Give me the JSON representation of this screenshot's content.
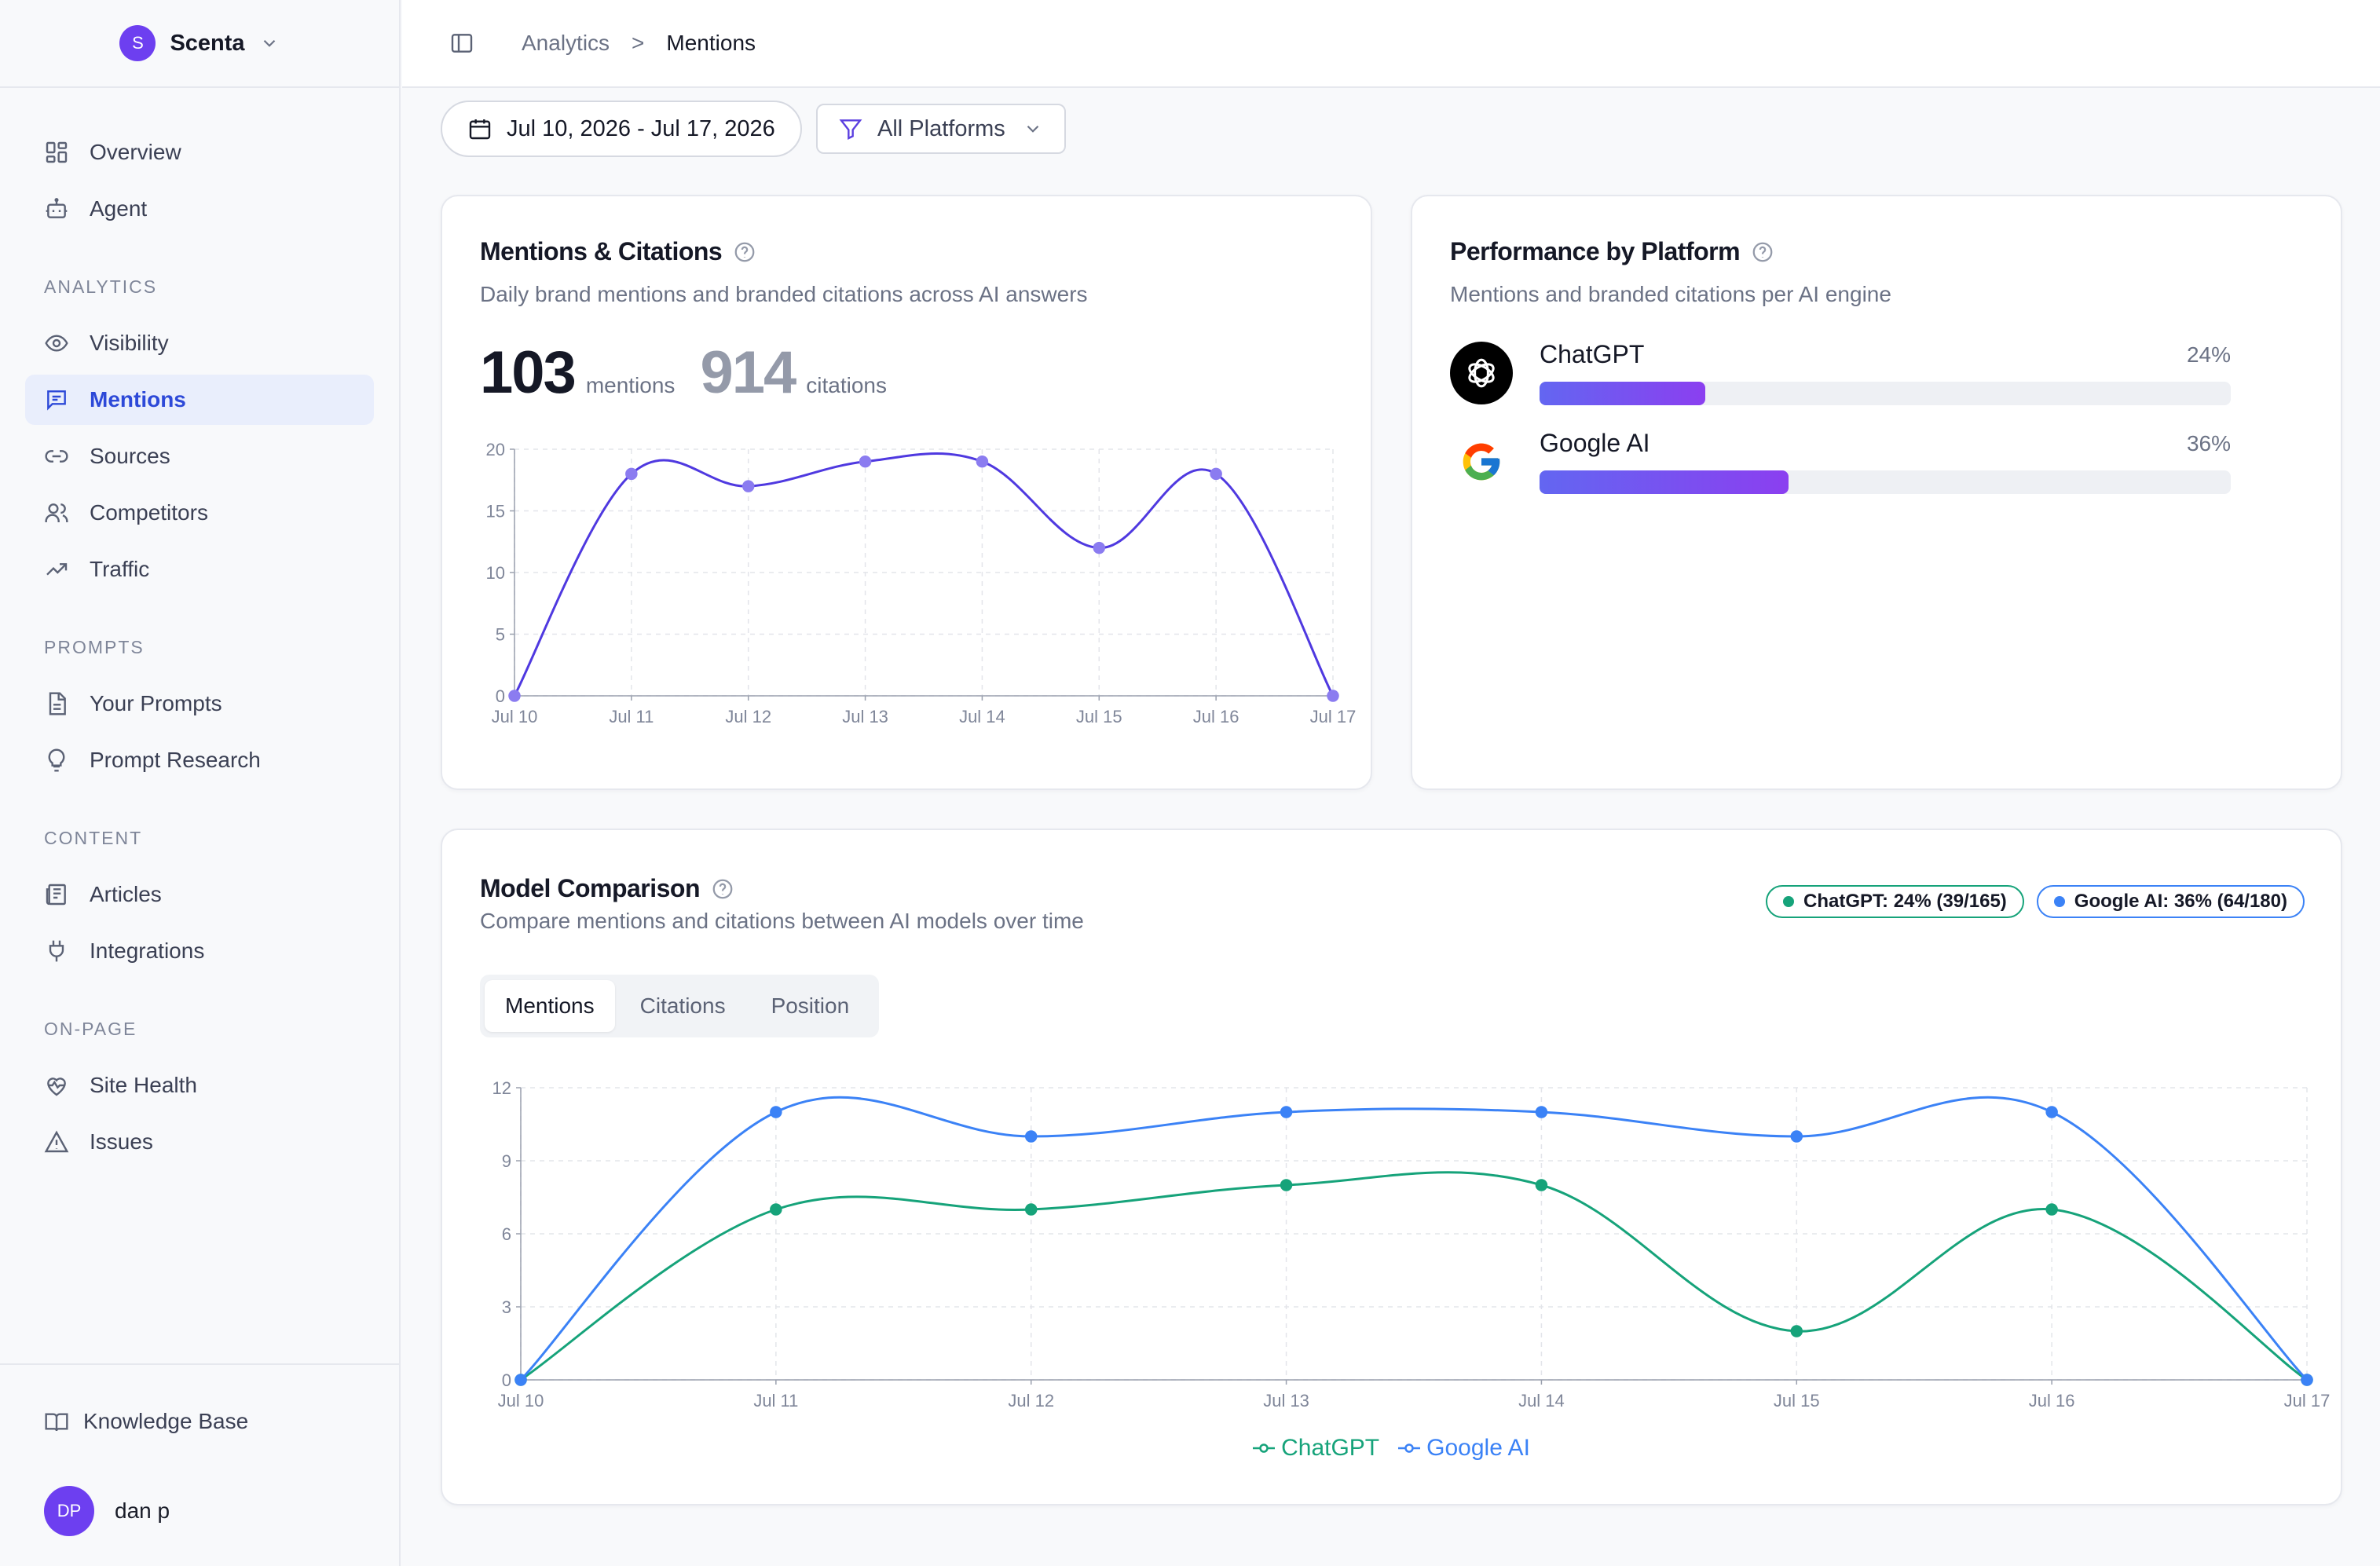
{
  "workspace": {
    "initial": "S",
    "name": "Scenta"
  },
  "nav": {
    "top": [
      {
        "label": "Overview",
        "icon": "dashboard-icon"
      },
      {
        "label": "Agent",
        "icon": "robot-icon"
      }
    ],
    "sections": [
      {
        "title": "ANALYTICS",
        "items": [
          {
            "label": "Visibility",
            "icon": "eye-icon"
          },
          {
            "label": "Mentions",
            "icon": "message-icon",
            "active": true
          },
          {
            "label": "Sources",
            "icon": "link-icon"
          },
          {
            "label": "Competitors",
            "icon": "users-icon"
          },
          {
            "label": "Traffic",
            "icon": "trending-up-icon"
          }
        ]
      },
      {
        "title": "PROMPTS",
        "items": [
          {
            "label": "Your Prompts",
            "icon": "document-icon"
          },
          {
            "label": "Prompt Research",
            "icon": "lightbulb-icon"
          }
        ]
      },
      {
        "title": "CONTENT",
        "items": [
          {
            "label": "Articles",
            "icon": "newspaper-icon"
          },
          {
            "label": "Integrations",
            "icon": "plug-icon"
          }
        ]
      },
      {
        "title": "ON-PAGE",
        "items": [
          {
            "label": "Site Health",
            "icon": "heart-pulse-icon"
          },
          {
            "label": "Issues",
            "icon": "warning-icon"
          }
        ]
      }
    ],
    "bottom": {
      "knowledge_base": "Knowledge Base",
      "user_initials": "DP",
      "user_name": "dan p"
    }
  },
  "breadcrumb": {
    "parent": "Analytics",
    "separator": ">",
    "current": "Mentions"
  },
  "filters": {
    "date_range": "Jul 10, 2026 - Jul 17, 2026",
    "platform": "All Platforms"
  },
  "mentions_card": {
    "title": "Mentions & Citations",
    "subtitle": "Daily brand mentions and branded citations across AI answers",
    "mentions_value": "103",
    "mentions_label": "mentions",
    "citations_value": "914",
    "citations_label": "citations"
  },
  "performance_card": {
    "title": "Performance by Platform",
    "subtitle": "Mentions and branded citations per AI engine",
    "platforms": [
      {
        "name": "ChatGPT",
        "pct_label": "24%",
        "share": 0.24
      },
      {
        "name": "Google AI",
        "pct_label": "36%",
        "share": 0.36
      }
    ]
  },
  "model_card": {
    "title": "Model Comparison",
    "subtitle": "Compare mentions and citations between AI models over time",
    "badges": [
      {
        "label": "ChatGPT: 24% (39/165)",
        "color": "#16a37a"
      },
      {
        "label": "Google AI: 36% (64/180)",
        "color": "#3b82f6"
      }
    ],
    "tabs": [
      "Mentions",
      "Citations",
      "Position"
    ],
    "active_tab": "Mentions"
  },
  "colors": {
    "accent": "#2d49d8",
    "purple": "#5b3fe0",
    "chatgpt": "#16a37a",
    "google": "#3b82f6"
  },
  "chart_data": [
    {
      "type": "line",
      "x": [
        "Jul 10",
        "Jul 11",
        "Jul 12",
        "Jul 13",
        "Jul 14",
        "Jul 15",
        "Jul 16",
        "Jul 17"
      ],
      "series": [
        {
          "values": [
            0,
            18,
            17,
            19,
            19,
            12,
            18,
            0
          ]
        }
      ],
      "ylim": [
        0,
        20
      ],
      "yticks": [
        0,
        5,
        10,
        15,
        20
      ],
      "grid": true
    },
    {
      "type": "line",
      "x": [
        "Jul 10",
        "Jul 11",
        "Jul 12",
        "Jul 13",
        "Jul 14",
        "Jul 15",
        "Jul 16",
        "Jul 17"
      ],
      "series": [
        {
          "name": "ChatGPT",
          "values": [
            0,
            7,
            7,
            8,
            8,
            2,
            7,
            0
          ]
        },
        {
          "name": "Google AI",
          "values": [
            0,
            11,
            10,
            11,
            11,
            10,
            11,
            0
          ]
        }
      ],
      "ylim": [
        0,
        12
      ],
      "yticks": [
        0,
        3,
        6,
        9,
        12
      ],
      "grid": true,
      "legend": "bottom"
    }
  ]
}
